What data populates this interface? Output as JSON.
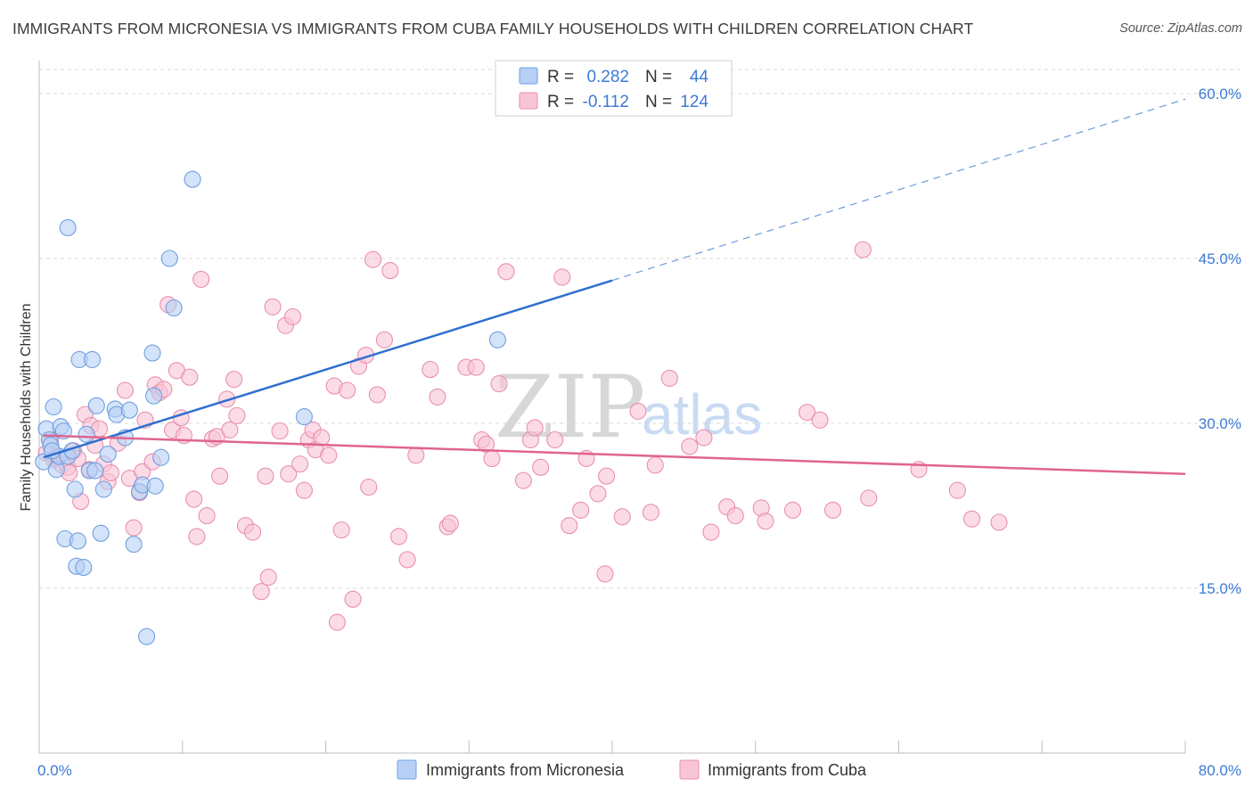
{
  "title": "IMMIGRANTS FROM MICRONESIA VS IMMIGRANTS FROM CUBA FAMILY HOUSEHOLDS WITH CHILDREN CORRELATION CHART",
  "source": "Source: ZipAtlas.com",
  "watermark": {
    "zip": "ZIP",
    "atlas": "atlas"
  },
  "colors": {
    "micronesia_fill": "#b6d0f5",
    "micronesia_stroke": "#6f9fe0",
    "micronesia_line": "#2f6fcf",
    "cuba_fill": "#f8c5d5",
    "cuba_stroke": "#e98fad",
    "cuba_line": "#e0648f",
    "grid": "#d9d9d9",
    "tick_text": "#3d7ad6"
  },
  "legend": {
    "rows": [
      {
        "r_label": "R =",
        "r_value": "0.282",
        "n_label": "N =",
        "n_value": "44"
      },
      {
        "r_label": "R =",
        "r_value": "-0.112",
        "n_label": "N =",
        "n_value": "124"
      }
    ]
  },
  "chart_data": {
    "type": "scatter",
    "title": "IMMIGRANTS FROM MICRONESIA VS IMMIGRANTS FROM CUBA FAMILY HOUSEHOLDS WITH CHILDREN CORRELATION CHART",
    "xlabel": "",
    "ylabel": "Family Households with Children",
    "xlim": [
      0,
      80
    ],
    "ylim": [
      0,
      63
    ],
    "x_tick_labels": {
      "min": "0.0%",
      "max": "80.0%"
    },
    "y_ticks": [
      15,
      30,
      45,
      60
    ],
    "y_tick_labels": [
      "15.0%",
      "30.0%",
      "45.0%",
      "60.0%"
    ],
    "grid": true,
    "legend_position": "top-center",
    "series": [
      {
        "name": "Immigrants from Micronesia",
        "R": 0.282,
        "N": 44,
        "trend": {
          "x0": 0.3,
          "y0": 26.9,
          "x1": 40,
          "y1": 43.0,
          "dash_to_x": 80,
          "dash_to_y": 59.5
        },
        "points": [
          [
            0.3,
            26.5
          ],
          [
            0.5,
            29.5
          ],
          [
            0.7,
            28.5
          ],
          [
            0.8,
            28.0
          ],
          [
            1.0,
            31.5
          ],
          [
            1.2,
            25.8
          ],
          [
            1.4,
            27.0
          ],
          [
            1.5,
            29.7
          ],
          [
            1.7,
            29.3
          ],
          [
            1.8,
            19.5
          ],
          [
            2.0,
            27.0
          ],
          [
            2.0,
            47.8
          ],
          [
            2.3,
            27.5
          ],
          [
            2.5,
            24.0
          ],
          [
            2.6,
            17.0
          ],
          [
            2.7,
            19.3
          ],
          [
            2.8,
            35.8
          ],
          [
            3.1,
            16.9
          ],
          [
            3.3,
            29.0
          ],
          [
            3.5,
            25.7
          ],
          [
            3.7,
            35.8
          ],
          [
            3.9,
            25.7
          ],
          [
            4.0,
            31.6
          ],
          [
            4.3,
            20.0
          ],
          [
            4.5,
            24.0
          ],
          [
            4.8,
            27.2
          ],
          [
            5.3,
            31.3
          ],
          [
            5.4,
            30.8
          ],
          [
            6.0,
            28.7
          ],
          [
            6.3,
            31.2
          ],
          [
            6.6,
            19.0
          ],
          [
            7.0,
            23.8
          ],
          [
            7.2,
            24.4
          ],
          [
            7.5,
            10.6
          ],
          [
            7.9,
            36.4
          ],
          [
            8.0,
            32.5
          ],
          [
            8.1,
            24.3
          ],
          [
            8.5,
            26.9
          ],
          [
            9.1,
            45.0
          ],
          [
            9.4,
            40.5
          ],
          [
            10.7,
            52.2
          ],
          [
            18.5,
            30.6
          ],
          [
            32.0,
            37.6
          ],
          [
            0.9,
            27.5
          ]
        ]
      },
      {
        "name": "Immigrants from Cuba",
        "R": -0.112,
        "N": 124,
        "trend": {
          "x0": 0.3,
          "y0": 28.9,
          "x1": 80,
          "y1": 25.4
        },
        "points": [
          [
            0.5,
            27.3
          ],
          [
            0.8,
            28.5
          ],
          [
            1.0,
            26.7
          ],
          [
            1.3,
            27.0
          ],
          [
            1.6,
            26.2
          ],
          [
            2.0,
            26.0
          ],
          [
            2.1,
            25.5
          ],
          [
            2.4,
            27.5
          ],
          [
            2.7,
            26.8
          ],
          [
            2.9,
            22.9
          ],
          [
            3.2,
            30.8
          ],
          [
            3.5,
            25.8
          ],
          [
            3.6,
            29.8
          ],
          [
            3.9,
            28.0
          ],
          [
            4.2,
            29.5
          ],
          [
            4.5,
            26.3
          ],
          [
            4.8,
            24.7
          ],
          [
            5.0,
            25.5
          ],
          [
            5.5,
            28.2
          ],
          [
            6.0,
            33.0
          ],
          [
            6.3,
            25.0
          ],
          [
            6.6,
            20.5
          ],
          [
            7.0,
            23.7
          ],
          [
            7.2,
            25.6
          ],
          [
            7.4,
            30.3
          ],
          [
            7.9,
            26.5
          ],
          [
            8.1,
            33.5
          ],
          [
            8.4,
            32.8
          ],
          [
            8.7,
            33.1
          ],
          [
            9.0,
            40.8
          ],
          [
            9.3,
            29.4
          ],
          [
            9.6,
            34.8
          ],
          [
            9.9,
            30.5
          ],
          [
            10.1,
            28.9
          ],
          [
            10.5,
            34.2
          ],
          [
            10.8,
            23.1
          ],
          [
            11.0,
            19.7
          ],
          [
            11.3,
            43.1
          ],
          [
            11.7,
            21.6
          ],
          [
            12.1,
            28.6
          ],
          [
            12.4,
            28.8
          ],
          [
            12.6,
            25.2
          ],
          [
            13.1,
            32.2
          ],
          [
            13.3,
            29.4
          ],
          [
            13.6,
            34.0
          ],
          [
            13.8,
            30.7
          ],
          [
            14.4,
            20.7
          ],
          [
            14.9,
            20.1
          ],
          [
            15.5,
            14.7
          ],
          [
            15.8,
            25.2
          ],
          [
            16.0,
            16.0
          ],
          [
            16.3,
            40.6
          ],
          [
            16.8,
            29.3
          ],
          [
            17.2,
            38.9
          ],
          [
            17.4,
            25.4
          ],
          [
            17.7,
            39.7
          ],
          [
            18.2,
            26.3
          ],
          [
            18.5,
            23.9
          ],
          [
            18.8,
            28.5
          ],
          [
            19.1,
            29.4
          ],
          [
            19.3,
            27.6
          ],
          [
            19.7,
            28.7
          ],
          [
            20.2,
            27.1
          ],
          [
            20.6,
            33.4
          ],
          [
            20.8,
            11.9
          ],
          [
            21.1,
            20.3
          ],
          [
            21.5,
            33.0
          ],
          [
            21.9,
            14.0
          ],
          [
            22.3,
            35.2
          ],
          [
            22.8,
            36.2
          ],
          [
            23.0,
            24.2
          ],
          [
            23.3,
            44.9
          ],
          [
            23.6,
            32.6
          ],
          [
            24.1,
            37.6
          ],
          [
            24.5,
            43.9
          ],
          [
            25.1,
            19.7
          ],
          [
            25.7,
            17.6
          ],
          [
            26.3,
            27.1
          ],
          [
            27.3,
            34.9
          ],
          [
            27.8,
            32.4
          ],
          [
            28.5,
            20.6
          ],
          [
            28.7,
            20.9
          ],
          [
            29.8,
            35.1
          ],
          [
            30.5,
            35.1
          ],
          [
            30.9,
            28.5
          ],
          [
            31.2,
            28.1
          ],
          [
            31.6,
            26.8
          ],
          [
            32.1,
            33.6
          ],
          [
            32.6,
            43.8
          ],
          [
            33.8,
            24.8
          ],
          [
            34.3,
            28.5
          ],
          [
            34.6,
            29.6
          ],
          [
            35.0,
            26.0
          ],
          [
            36.0,
            28.5
          ],
          [
            36.5,
            43.3
          ],
          [
            37.0,
            20.7
          ],
          [
            37.8,
            22.1
          ],
          [
            38.2,
            26.8
          ],
          [
            39.0,
            23.6
          ],
          [
            39.5,
            16.3
          ],
          [
            39.6,
            25.2
          ],
          [
            40.7,
            21.5
          ],
          [
            41.8,
            31.1
          ],
          [
            42.7,
            21.9
          ],
          [
            43.0,
            26.2
          ],
          [
            44.0,
            34.1
          ],
          [
            45.4,
            27.9
          ],
          [
            46.4,
            28.7
          ],
          [
            46.9,
            20.1
          ],
          [
            48.0,
            22.4
          ],
          [
            48.6,
            21.6
          ],
          [
            50.4,
            22.3
          ],
          [
            50.7,
            21.1
          ],
          [
            52.6,
            22.1
          ],
          [
            53.6,
            31.0
          ],
          [
            54.5,
            30.3
          ],
          [
            55.4,
            22.1
          ],
          [
            57.5,
            45.8
          ],
          [
            57.9,
            23.2
          ],
          [
            61.4,
            25.8
          ],
          [
            64.1,
            23.9
          ],
          [
            65.1,
            21.3
          ],
          [
            67.0,
            21.0
          ],
          [
            1.1,
            26.9
          ]
        ]
      }
    ]
  },
  "bottom_legend": [
    {
      "label": "Immigrants from Micronesia"
    },
    {
      "label": "Immigrants from Cuba"
    }
  ]
}
